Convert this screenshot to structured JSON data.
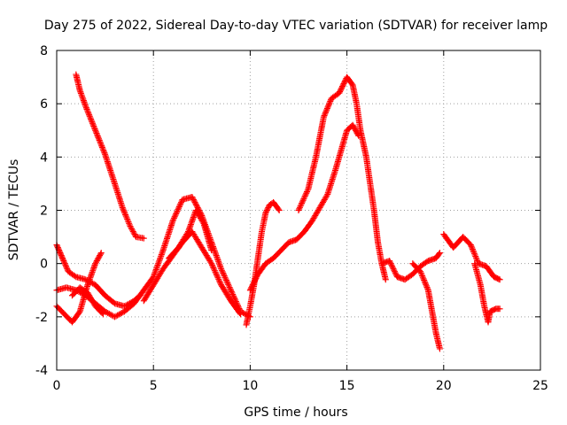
{
  "chart_data": {
    "type": "scatter",
    "title": "Day 275 of 2022, Sidereal Day-to-day VTEC variation (SDTVAR) for receiver lamp",
    "xlabel": "GPS time / hours",
    "ylabel": "SDTVAR / TECUs",
    "xlim": [
      0,
      25
    ],
    "ylim": [
      -4,
      8
    ],
    "xticks": [
      0,
      5,
      10,
      15,
      20,
      25
    ],
    "yticks": [
      -4,
      -2,
      0,
      2,
      4,
      6,
      8
    ],
    "grid": true,
    "marker": "+",
    "color": "#ff0000",
    "series": [
      {
        "name": "s1",
        "points": [
          [
            1.0,
            7.1
          ],
          [
            1.2,
            6.5
          ],
          [
            1.5,
            5.9
          ],
          [
            2.0,
            5.0
          ],
          [
            2.5,
            4.1
          ],
          [
            3.0,
            3.0
          ],
          [
            3.4,
            2.1
          ],
          [
            3.8,
            1.4
          ],
          [
            4.1,
            1.0
          ],
          [
            4.5,
            0.95
          ]
        ]
      },
      {
        "name": "s2",
        "points": [
          [
            0.0,
            0.7
          ],
          [
            0.3,
            0.2
          ],
          [
            0.6,
            -0.3
          ],
          [
            1.0,
            -0.5
          ],
          [
            1.5,
            -0.6
          ],
          [
            2.0,
            -0.8
          ],
          [
            2.5,
            -1.2
          ],
          [
            3.0,
            -1.5
          ],
          [
            3.5,
            -1.6
          ],
          [
            4.0,
            -1.4
          ],
          [
            4.3,
            -1.2
          ]
        ]
      },
      {
        "name": "s3",
        "points": [
          [
            0.0,
            -1.0
          ],
          [
            0.5,
            -0.9
          ],
          [
            1.0,
            -1.0
          ],
          [
            1.5,
            -1.2
          ],
          [
            2.0,
            -1.5
          ],
          [
            2.5,
            -1.8
          ],
          [
            3.0,
            -2.0
          ],
          [
            3.5,
            -1.8
          ],
          [
            4.0,
            -1.5
          ],
          [
            4.5,
            -1.0
          ],
          [
            5.0,
            -0.5
          ],
          [
            5.5,
            0.5
          ],
          [
            6.0,
            1.6
          ],
          [
            6.5,
            2.4
          ],
          [
            7.0,
            2.5
          ],
          [
            7.5,
            1.8
          ],
          [
            8.0,
            0.8
          ],
          [
            8.5,
            -0.2
          ],
          [
            9.0,
            -1.0
          ],
          [
            9.5,
            -1.8
          ],
          [
            10.0,
            -2.0
          ]
        ]
      },
      {
        "name": "s4",
        "points": [
          [
            0.0,
            -1.6
          ],
          [
            0.4,
            -1.9
          ],
          [
            0.8,
            -2.2
          ],
          [
            1.2,
            -1.8
          ],
          [
            1.6,
            -0.8
          ],
          [
            2.0,
            0.0
          ],
          [
            2.3,
            0.4
          ]
        ]
      },
      {
        "name": "s5",
        "points": [
          [
            0.8,
            -1.2
          ],
          [
            1.2,
            -0.9
          ],
          [
            1.6,
            -1.1
          ],
          [
            2.0,
            -1.6
          ],
          [
            2.4,
            -1.9
          ]
        ]
      },
      {
        "name": "s6",
        "points": [
          [
            4.5,
            -1.4
          ],
          [
            5.0,
            -0.8
          ],
          [
            5.5,
            -0.2
          ],
          [
            6.0,
            0.3
          ],
          [
            6.5,
            0.8
          ],
          [
            7.0,
            1.2
          ],
          [
            7.5,
            0.6
          ],
          [
            8.0,
            0.0
          ],
          [
            8.5,
            -0.8
          ],
          [
            9.0,
            -1.4
          ],
          [
            9.5,
            -1.9
          ]
        ]
      },
      {
        "name": "s7",
        "points": [
          [
            5.8,
            0.2
          ],
          [
            6.3,
            0.6
          ],
          [
            6.8,
            1.2
          ],
          [
            7.2,
            2.0
          ],
          [
            7.6,
            1.5
          ],
          [
            8.0,
            0.5
          ]
        ]
      },
      {
        "name": "s8",
        "points": [
          [
            9.8,
            -2.3
          ],
          [
            10.0,
            -1.6
          ],
          [
            10.2,
            -0.8
          ],
          [
            10.4,
            0.2
          ],
          [
            10.6,
            1.2
          ],
          [
            10.8,
            1.9
          ],
          [
            11.0,
            2.2
          ],
          [
            11.2,
            2.3
          ],
          [
            11.5,
            2.0
          ]
        ]
      },
      {
        "name": "s9",
        "points": [
          [
            10.0,
            -1.0
          ],
          [
            10.4,
            -0.4
          ],
          [
            10.8,
            0.0
          ],
          [
            11.2,
            0.2
          ],
          [
            11.6,
            0.5
          ],
          [
            12.0,
            0.8
          ],
          [
            12.4,
            0.9
          ],
          [
            12.8,
            1.2
          ],
          [
            13.2,
            1.6
          ],
          [
            13.6,
            2.1
          ],
          [
            14.0,
            2.6
          ],
          [
            14.4,
            3.5
          ],
          [
            14.8,
            4.5
          ],
          [
            15.0,
            5.0
          ],
          [
            15.3,
            5.2
          ],
          [
            15.6,
            4.8
          ]
        ]
      },
      {
        "name": "s10",
        "points": [
          [
            12.5,
            2.0
          ],
          [
            13.0,
            2.8
          ],
          [
            13.4,
            4.0
          ],
          [
            13.8,
            5.5
          ],
          [
            14.2,
            6.2
          ],
          [
            14.6,
            6.4
          ],
          [
            15.0,
            7.0
          ],
          [
            15.3,
            6.7
          ],
          [
            15.5,
            6.0
          ],
          [
            15.7,
            5.0
          ],
          [
            16.0,
            4.0
          ],
          [
            16.2,
            3.0
          ],
          [
            16.4,
            2.0
          ],
          [
            16.6,
            0.8
          ],
          [
            16.8,
            0.0
          ],
          [
            17.0,
            -0.6
          ]
        ]
      },
      {
        "name": "s11",
        "points": [
          [
            16.8,
            0.0
          ],
          [
            17.2,
            0.1
          ],
          [
            17.6,
            -0.5
          ],
          [
            18.0,
            -0.6
          ],
          [
            18.4,
            -0.4
          ],
          [
            18.8,
            -0.1
          ],
          [
            19.2,
            0.1
          ],
          [
            19.6,
            0.2
          ],
          [
            19.8,
            0.4
          ]
        ]
      },
      {
        "name": "s12",
        "points": [
          [
            18.4,
            0.0
          ],
          [
            18.8,
            -0.3
          ],
          [
            19.2,
            -1.0
          ],
          [
            19.4,
            -1.8
          ],
          [
            19.6,
            -2.6
          ],
          [
            19.8,
            -3.2
          ]
        ]
      },
      {
        "name": "s13",
        "points": [
          [
            20.0,
            1.1
          ],
          [
            20.5,
            0.6
          ],
          [
            21.0,
            1.0
          ],
          [
            21.4,
            0.7
          ],
          [
            21.8,
            0.0
          ],
          [
            22.2,
            -0.1
          ],
          [
            22.6,
            -0.5
          ],
          [
            22.9,
            -0.6
          ]
        ]
      },
      {
        "name": "s14",
        "points": [
          [
            21.6,
            0.0
          ],
          [
            21.9,
            -0.8
          ],
          [
            22.1,
            -1.6
          ],
          [
            22.3,
            -2.2
          ],
          [
            22.4,
            -1.8
          ],
          [
            22.7,
            -1.7
          ],
          [
            22.9,
            -1.7
          ]
        ]
      }
    ]
  }
}
